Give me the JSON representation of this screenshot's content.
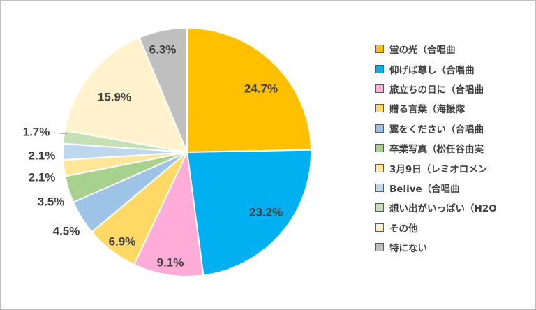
{
  "chart_data": {
    "type": "pie",
    "title": "",
    "legend_position": "right",
    "slices": [
      {
        "label": "蛍の光（合唱曲",
        "value": 24.7,
        "value_label": "24.7%",
        "color": "#FFC000"
      },
      {
        "label": "仰げば尊し（合唱曲",
        "value": 23.2,
        "value_label": "23.2%",
        "color": "#00B0F0"
      },
      {
        "label": "旅立ちの日に（合唱曲",
        "value": 9.1,
        "value_label": "9.1%",
        "color": "#FFACD9"
      },
      {
        "label": "贈る言葉（海援隊",
        "value": 6.9,
        "value_label": "6.9%",
        "color": "#FFD966"
      },
      {
        "label": "翼をください（合唱曲",
        "value": 4.5,
        "value_label": "4.5%",
        "color": "#9DC3E6"
      },
      {
        "label": "卒業写真（松任谷由実",
        "value": 3.5,
        "value_label": "3.5%",
        "color": "#A9D18E"
      },
      {
        "label": "3月9日（レミオロメン",
        "value": 2.1,
        "value_label": "2.1%",
        "color": "#FFE699"
      },
      {
        "label": "Belive（合唱曲",
        "value": 2.1,
        "value_label": "2.1%",
        "color": "#BDD7EE"
      },
      {
        "label": "想い出がいっぱい（H2O",
        "value": 1.7,
        "value_label": "1.7%",
        "color": "#C5E0B4"
      },
      {
        "label": "その他",
        "value": 15.9,
        "value_label": "15.9%",
        "color": "#FFF2CC"
      },
      {
        "label": "特にない",
        "value": 6.3,
        "value_label": "6.3%",
        "color": "#BFBFBF"
      }
    ]
  }
}
